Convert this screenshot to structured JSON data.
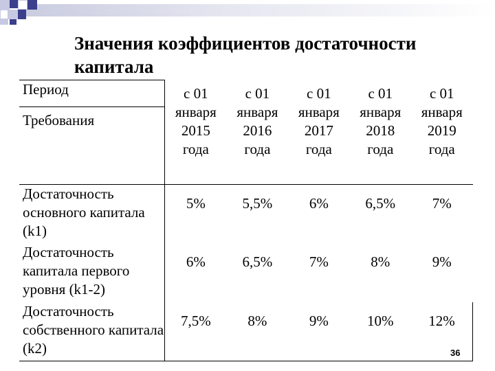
{
  "title": "Значения коэффициентов достаточности капитала",
  "table": {
    "header_period": "Период",
    "header_requirements": "Требования",
    "columns": [
      {
        "line1": "с 01",
        "line2": "января",
        "line3": "2015",
        "line4": "года"
      },
      {
        "line1": "с 01",
        "line2": "января",
        "line3": "2016",
        "line4": "года"
      },
      {
        "line1": "с 01",
        "line2": "января",
        "line3": "2017",
        "line4": "года"
      },
      {
        "line1": "с 01",
        "line2": "января",
        "line3": "2018",
        "line4": "года"
      },
      {
        "line1": "с 01",
        "line2": "января",
        "line3": "2019",
        "line4": "года"
      }
    ],
    "rows": [
      {
        "label": "Достаточность основного капитала (k1)",
        "values": [
          "5%",
          "5,5%",
          "6%",
          "6,5%",
          "7%"
        ]
      },
      {
        "label": "Достаточность капитала первого уровня (k1-2)",
        "values": [
          "6%",
          "6,5%",
          "7%",
          "8%",
          "9%"
        ]
      },
      {
        "label": "Достаточность собственного капитала (k2)",
        "values": [
          "7,5%",
          "8%",
          "9%",
          "10%",
          "12%"
        ]
      }
    ]
  },
  "page_number": "36",
  "colors": {
    "accent_dark": "#3b3f8c",
    "accent_light": "#c7c9e3"
  }
}
